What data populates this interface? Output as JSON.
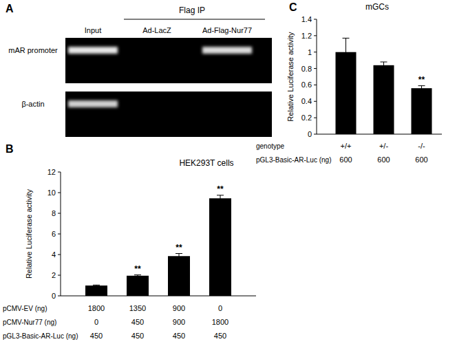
{
  "chart_data": [
    {
      "type": "gel",
      "panel": "A",
      "header": "Flag IP",
      "lanes": [
        "Input",
        "Ad-LacZ",
        "Ad-Flag-Nur77"
      ],
      "rows": [
        {
          "name": "mAR promoter",
          "values": [
            1,
            0,
            0.95
          ]
        },
        {
          "name": "β-actin",
          "values": [
            0.9,
            0,
            0
          ]
        }
      ]
    },
    {
      "type": "bar",
      "panel": "B",
      "title": "HEK293T cells",
      "y_label": "Relative Luciferase activity",
      "categories": [
        null,
        null,
        null,
        null
      ],
      "values": [
        1.0,
        1.95,
        3.85,
        9.45
      ],
      "errors": [
        0.05,
        0.08,
        0.25,
        0.3
      ],
      "significance": [
        null,
        "**",
        "**",
        "**"
      ],
      "color": "#000000",
      "ylim": [
        0,
        12
      ],
      "yticks": [
        0,
        2,
        4,
        6,
        8,
        10,
        12
      ],
      "x_table": [
        {
          "label": "pCMV-EV (ng)",
          "values": [
            1800,
            1350,
            900,
            0
          ]
        },
        {
          "label": "pCMV-Nur77 (ng)",
          "values": [
            0,
            450,
            900,
            1800
          ]
        },
        {
          "label": "pGL3-Basic-AR-Luc (ng)",
          "values": [
            450,
            450,
            450,
            450
          ]
        }
      ]
    },
    {
      "type": "bar",
      "panel": "C",
      "title": "mGCs",
      "y_label": "Relative Luciferase activity",
      "categories": [
        null,
        null,
        null
      ],
      "values": [
        1.0,
        0.84,
        0.56
      ],
      "errors": [
        0.17,
        0.04,
        0.03
      ],
      "significance": [
        null,
        null,
        "**"
      ],
      "color": "#000000",
      "ylim": [
        0,
        1.4
      ],
      "yticks": [
        0,
        0.2,
        0.4,
        0.6,
        0.8,
        1,
        1.2,
        1.4
      ],
      "x_table": [
        {
          "label": "genotype",
          "values": [
            "+/+",
            "+/-",
            "-/-"
          ]
        },
        {
          "label": "pGL3-Basic-AR-Luc (ng)",
          "values": [
            600,
            600,
            600
          ]
        }
      ]
    }
  ]
}
